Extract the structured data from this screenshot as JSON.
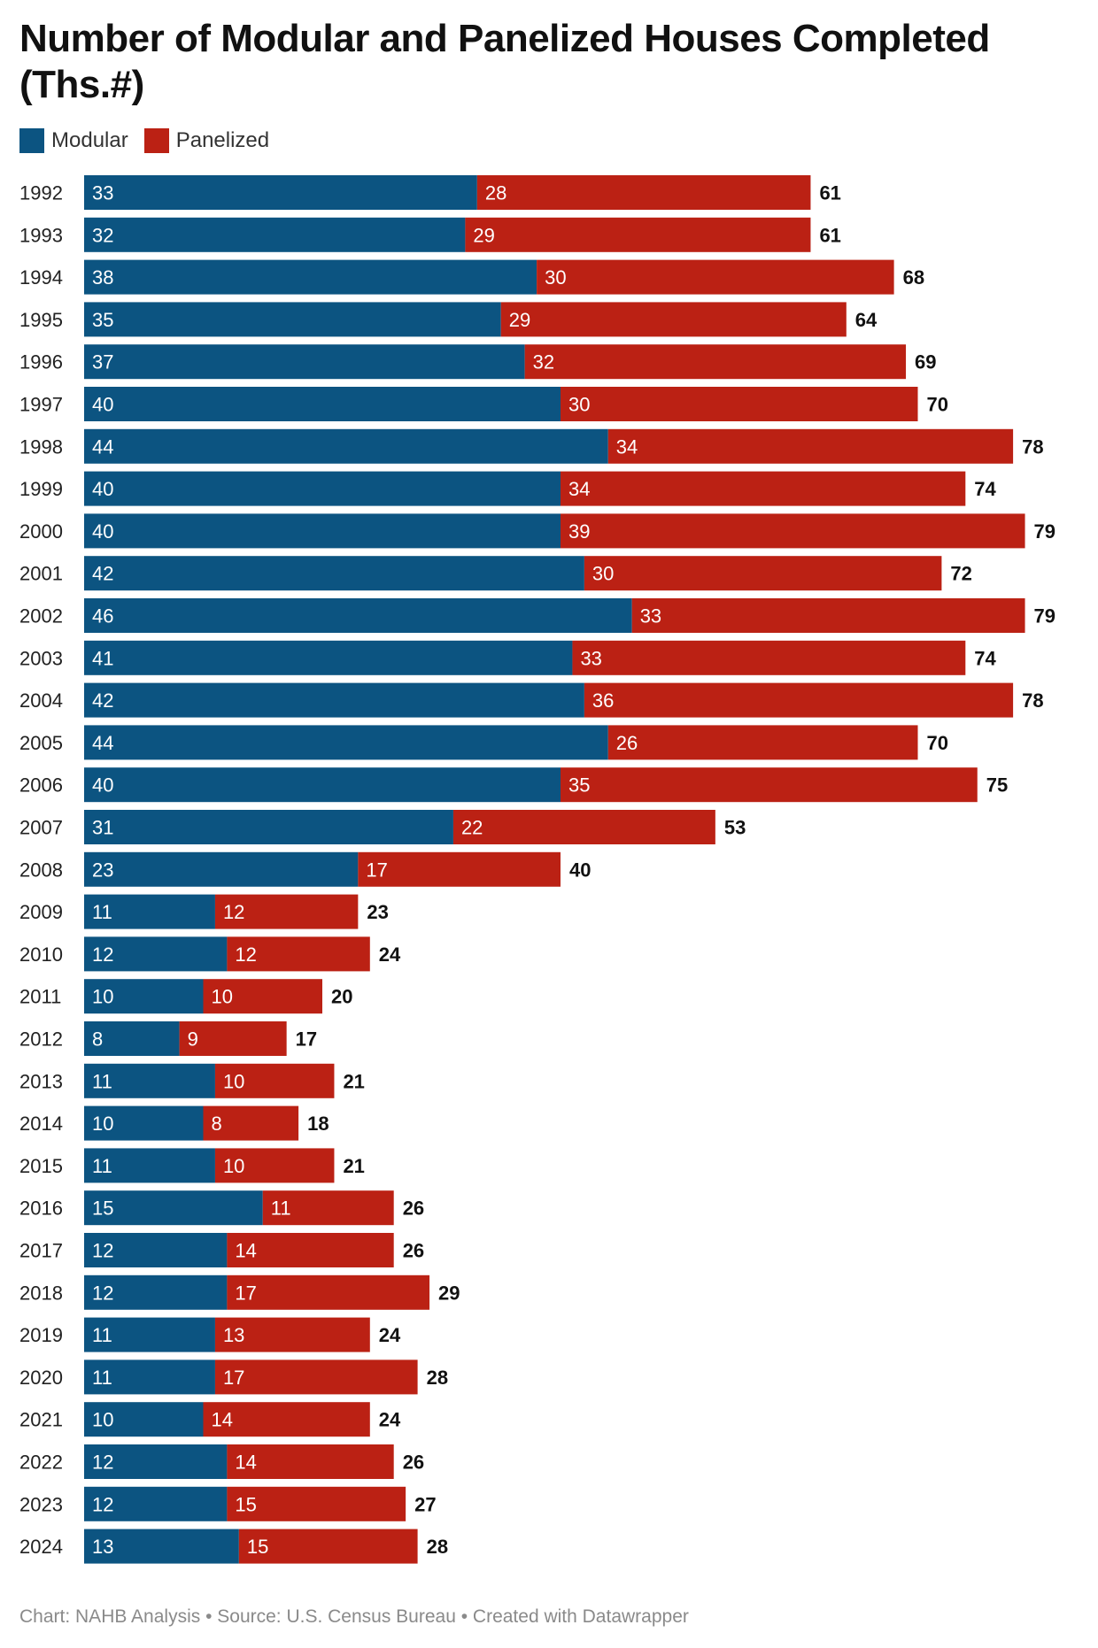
{
  "title": "Number of Modular and Panelized Houses Completed (Ths.#)",
  "footer": "Chart: NAHB Analysis • Source: U.S. Census Bureau  • Created with Datawrapper",
  "colors": {
    "modular": "#0c5481",
    "panelized": "#bb2114"
  },
  "chart_data": {
    "type": "bar",
    "orientation": "horizontal",
    "stacked": true,
    "title": "Number of Modular and Panelized Houses Completed (Ths.#)",
    "categories": [
      "1992",
      "1993",
      "1994",
      "1995",
      "1996",
      "1997",
      "1998",
      "1999",
      "2000",
      "2001",
      "2002",
      "2003",
      "2004",
      "2005",
      "2006",
      "2007",
      "2008",
      "2009",
      "2010",
      "2011",
      "2012",
      "2013",
      "2014",
      "2015",
      "2016",
      "2017",
      "2018",
      "2019",
      "2020",
      "2021",
      "2022",
      "2023",
      "2024"
    ],
    "series": [
      {
        "name": "Modular",
        "color": "#0c5481",
        "values": [
          33,
          32,
          38,
          35,
          37,
          40,
          44,
          40,
          40,
          42,
          46,
          41,
          42,
          44,
          40,
          31,
          23,
          11,
          12,
          10,
          8,
          11,
          10,
          11,
          15,
          12,
          12,
          11,
          11,
          10,
          12,
          12,
          13
        ]
      },
      {
        "name": "Panelized",
        "color": "#bb2114",
        "values": [
          28,
          29,
          30,
          29,
          32,
          30,
          34,
          34,
          39,
          30,
          33,
          33,
          36,
          26,
          35,
          22,
          17,
          12,
          12,
          10,
          9,
          10,
          8,
          10,
          11,
          14,
          17,
          13,
          17,
          14,
          14,
          15,
          15
        ]
      }
    ],
    "totals": [
      61,
      61,
      68,
      64,
      69,
      70,
      78,
      74,
      79,
      72,
      79,
      74,
      78,
      70,
      75,
      53,
      40,
      23,
      24,
      20,
      17,
      21,
      18,
      21,
      26,
      26,
      29,
      24,
      28,
      24,
      26,
      27,
      28
    ],
    "legend_position": "top-left",
    "grid": false
  }
}
